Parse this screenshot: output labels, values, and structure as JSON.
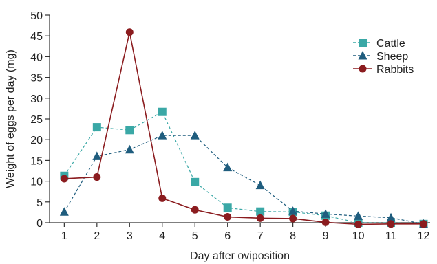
{
  "chart_data": {
    "type": "line",
    "title": "",
    "xlabel": "Day after oviposition",
    "ylabel": "Weight of eggs per day (mg)",
    "x": [
      1,
      2,
      3,
      4,
      5,
      6,
      7,
      8,
      9,
      10,
      11,
      12
    ],
    "xticks": [
      "1",
      "2",
      "3",
      "4",
      "5",
      "6",
      "7",
      "8",
      "9",
      "10",
      "11",
      "12"
    ],
    "ylim": [
      0,
      50
    ],
    "yticks": [
      "0",
      "5",
      "10",
      "15",
      "20",
      "25",
      "30",
      "35",
      "40",
      "45",
      "50"
    ],
    "grid": false,
    "legend_position": "top-right",
    "series": [
      {
        "name": "Cattle",
        "marker": "square",
        "line_style": "dashed",
        "color": "#3aa8a6",
        "values": [
          11.3,
          23.0,
          22.3,
          26.7,
          9.8,
          3.6,
          2.7,
          2.6,
          1.7,
          0.0,
          0.0,
          -0.3
        ]
      },
      {
        "name": "Sheep",
        "marker": "triangle",
        "line_style": "dashed",
        "color": "#1f5d7e",
        "values": [
          2.6,
          16.0,
          17.6,
          21.0,
          21.0,
          13.3,
          9.0,
          2.8,
          2.1,
          1.6,
          1.2,
          -0.3
        ]
      },
      {
        "name": "Rabbits",
        "marker": "circle",
        "line_style": "solid",
        "color": "#8b1c1f",
        "values": [
          10.6,
          11.0,
          45.9,
          5.9,
          3.1,
          1.4,
          1.1,
          1.0,
          0.1,
          -0.4,
          -0.3,
          -0.3
        ]
      }
    ]
  }
}
